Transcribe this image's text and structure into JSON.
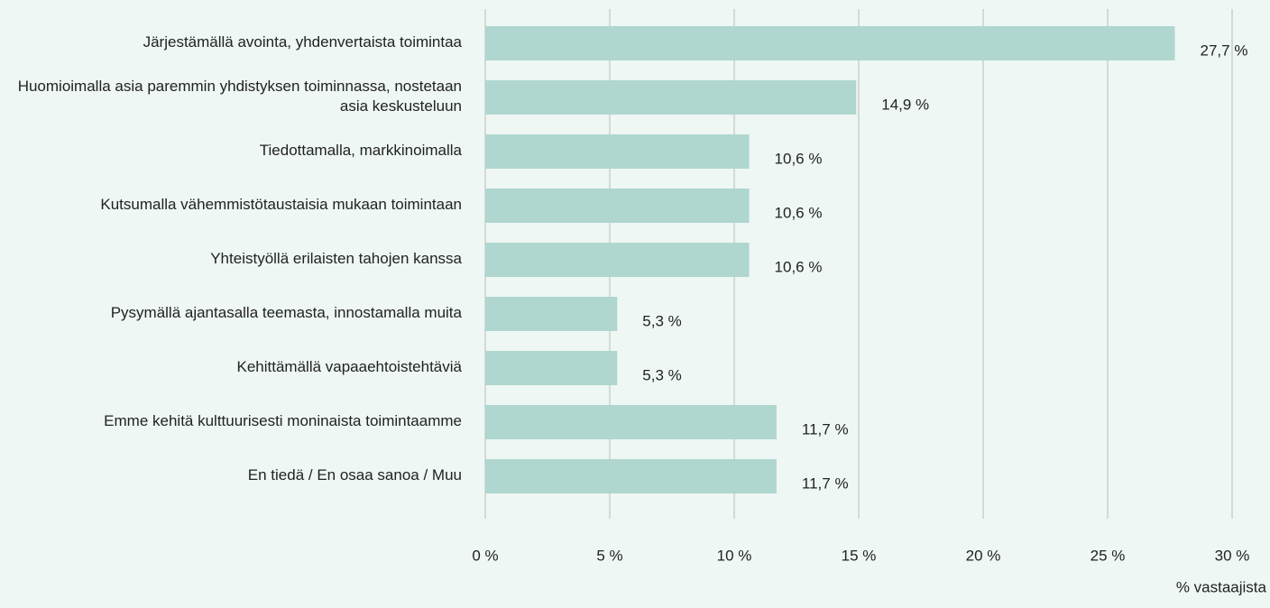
{
  "chart_data": {
    "type": "bar",
    "orientation": "horizontal",
    "categories": [
      "Järjestämällä avointa, yhdenvertaista toimintaa",
      "Huomioimalla asia paremmin yhdistyksen toiminnassa, nostetaan asia keskusteluun",
      "Tiedottamalla, markkinoimalla",
      "Kutsumalla vähemmistötaustaisia mukaan toimintaan",
      "Yhteistyöllä erilaisten tahojen kanssa",
      "Pysymällä ajantasalla teemasta, innostamalla muita",
      "Kehittämällä vapaaehtoistehtäviä",
      "Emme kehitä kulttuurisesti moninaista toimintaamme",
      "En tiedä / En osaa sanoa / Muu"
    ],
    "values": [
      27.7,
      14.9,
      10.6,
      10.6,
      10.6,
      5.3,
      5.3,
      11.7,
      11.7
    ],
    "value_labels": [
      "27,7 %",
      "14,9 %",
      "10,6 %",
      "10,6 %",
      "10,6 %",
      "5,3 %",
      "5,3 %",
      "11,7 %",
      "11,7 %"
    ],
    "color": "#b0d6d0",
    "xlabel": "% vastaajista",
    "xlim": [
      0,
      30
    ],
    "xticks": [
      {
        "value": 0,
        "label": "0 %"
      },
      {
        "value": 5,
        "label": "5 %"
      },
      {
        "value": 10,
        "label": "10 %"
      },
      {
        "value": 15,
        "label": "15 %"
      },
      {
        "value": 20,
        "label": "20 %"
      },
      {
        "value": 25,
        "label": "25 %"
      },
      {
        "value": 30,
        "label": "30 %"
      }
    ],
    "grid": true
  }
}
